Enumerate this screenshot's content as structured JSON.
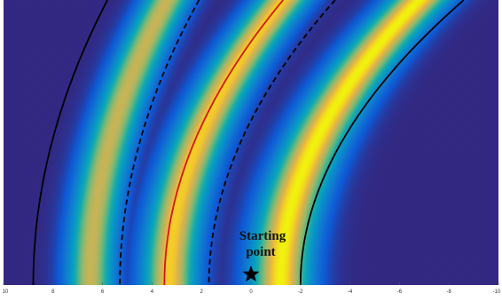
{
  "chart_data": {
    "type": "heatmap",
    "title": "",
    "xlabel": "",
    "ylabel": "",
    "xlim": [
      10,
      -10
    ],
    "x_reversed": true,
    "x_ticks": [
      10,
      8,
      6,
      4,
      2,
      0,
      -2,
      -4,
      -6,
      -8,
      -10
    ],
    "x_tick_labels": [
      "10",
      "8",
      "6",
      "4",
      "2",
      "0",
      "-2",
      "-4",
      "-6",
      "-8",
      "-10"
    ],
    "colormap": "parula",
    "bands": [
      {
        "name": "band-1",
        "x_at_bottom": 6.5,
        "curvature": 3.1,
        "width": 1.0,
        "intensity": 0.85
      },
      {
        "name": "band-2",
        "x_at_bottom": 3.3,
        "curvature": 4.6,
        "width": 1.15,
        "intensity": 0.95
      },
      {
        "name": "band-3",
        "x_at_bottom": -1.2,
        "curvature": 5.6,
        "width": 1.3,
        "intensity": 1.0
      }
    ],
    "contours": [
      {
        "name": "contour-black-1",
        "style": "solid",
        "color": "#000000",
        "x_at_bottom": 8.8,
        "curvature": 3.0
      },
      {
        "name": "contour-dashed-1",
        "style": "dashed",
        "color": "#000000",
        "x_at_bottom": 5.3,
        "curvature": 3.2
      },
      {
        "name": "contour-red",
        "style": "solid",
        "color": "#d11818",
        "x_at_bottom": 3.5,
        "curvature": 4.8
      },
      {
        "name": "contour-dashed-2",
        "style": "dashed",
        "color": "#000000",
        "x_at_bottom": 1.7,
        "curvature": 5.1
      },
      {
        "name": "contour-black-2",
        "style": "solid",
        "color": "#000000",
        "x_at_bottom": -2.0,
        "curvature": 6.6
      }
    ],
    "marker": {
      "symbol": "star",
      "x": 0.0
    },
    "annotation": {
      "lines": [
        "Starting",
        "point"
      ],
      "x": 0.0
    },
    "grid": false,
    "legend": "none"
  }
}
